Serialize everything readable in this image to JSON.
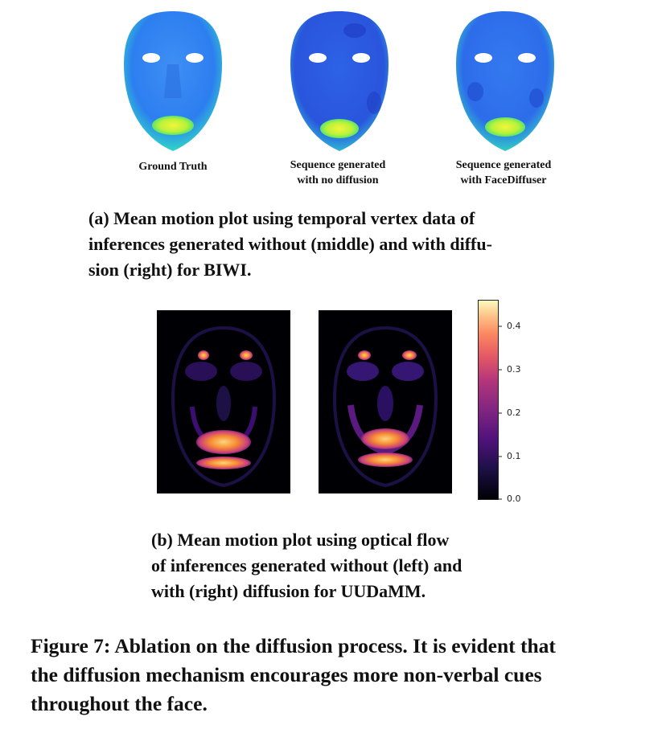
{
  "panel_a": {
    "labels": {
      "ground_truth": [
        "Ground Truth"
      ],
      "no_diffusion": [
        "Sequence generated",
        "with no diffusion"
      ],
      "face_diffuser": [
        "Sequence generated",
        "with FaceDiffuser"
      ]
    },
    "caption": [
      "(a) Mean motion plot using temporal vertex data of",
      "inferences generated without (middle) and with diffu-",
      "sion (right) for BIWI."
    ]
  },
  "panel_b": {
    "colorbar_ticks": [
      "0.4",
      "0.3",
      "0.2",
      "0.1",
      "0.0"
    ],
    "caption": [
      "(b) Mean motion plot using optical flow",
      "of inferences generated without (left) and",
      "with (right) diffusion for UUDaMM."
    ]
  },
  "figure_caption": [
    "Figure 7: Ablation on the diffusion process. It is evident that",
    "the diffusion mechanism encourages more non-verbal cues",
    "throughout the face."
  ],
  "colors": {
    "cmap_low": "#000004",
    "cmap_mid": "#b5367a",
    "cmap_high": "#fcffa4",
    "face_blue": "#2f6ef0",
    "face_green": "#2fe06a"
  }
}
